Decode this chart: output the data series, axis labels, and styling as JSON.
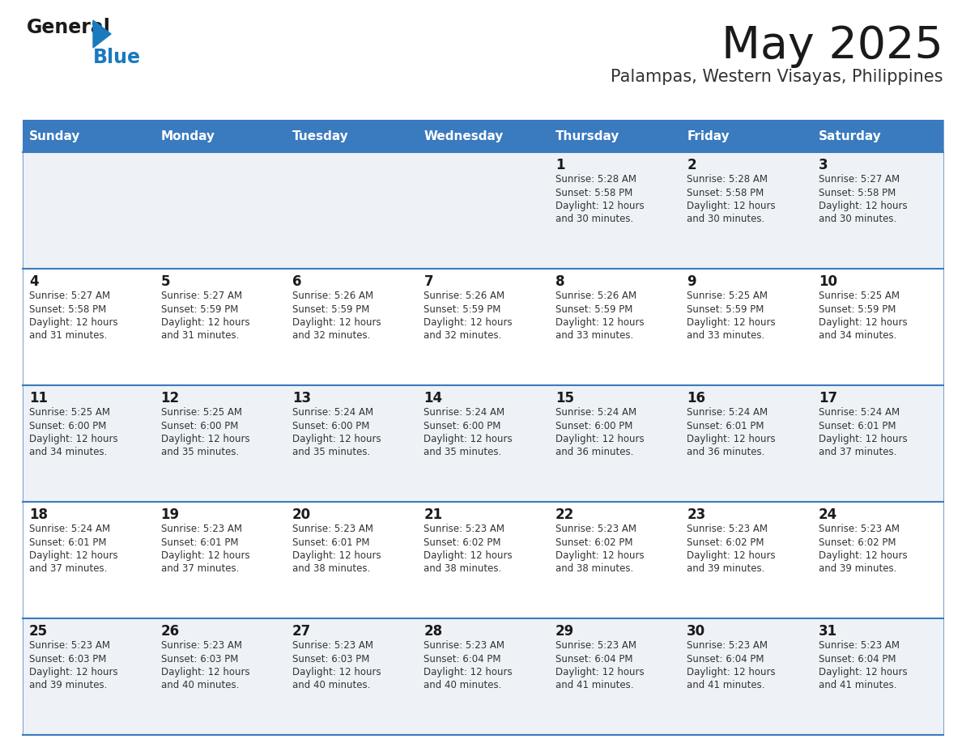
{
  "title": "May 2025",
  "subtitle": "Palampas, Western Visayas, Philippines",
  "days_of_week": [
    "Sunday",
    "Monday",
    "Tuesday",
    "Wednesday",
    "Thursday",
    "Friday",
    "Saturday"
  ],
  "header_bg": "#3a7abf",
  "header_text": "#ffffff",
  "row_bg_odd": "#eef2f7",
  "row_bg_even": "#ffffff",
  "border_color": "#3a7abf",
  "title_color": "#1a1a1a",
  "subtitle_color": "#333333",
  "day_num_color": "#1a1a1a",
  "cell_text_color": "#333333",
  "logo_black": "#1a1a1a",
  "logo_blue": "#1a7abf",
  "calendar": [
    [
      {
        "day": "",
        "sunrise": "",
        "sunset": "",
        "daylight": ""
      },
      {
        "day": "",
        "sunrise": "",
        "sunset": "",
        "daylight": ""
      },
      {
        "day": "",
        "sunrise": "",
        "sunset": "",
        "daylight": ""
      },
      {
        "day": "",
        "sunrise": "",
        "sunset": "",
        "daylight": ""
      },
      {
        "day": "1",
        "sunrise": "5:28 AM",
        "sunset": "5:58 PM",
        "daylight": "12 hours and 30 minutes."
      },
      {
        "day": "2",
        "sunrise": "5:28 AM",
        "sunset": "5:58 PM",
        "daylight": "12 hours and 30 minutes."
      },
      {
        "day": "3",
        "sunrise": "5:27 AM",
        "sunset": "5:58 PM",
        "daylight": "12 hours and 30 minutes."
      }
    ],
    [
      {
        "day": "4",
        "sunrise": "5:27 AM",
        "sunset": "5:58 PM",
        "daylight": "12 hours and 31 minutes."
      },
      {
        "day": "5",
        "sunrise": "5:27 AM",
        "sunset": "5:59 PM",
        "daylight": "12 hours and 31 minutes."
      },
      {
        "day": "6",
        "sunrise": "5:26 AM",
        "sunset": "5:59 PM",
        "daylight": "12 hours and 32 minutes."
      },
      {
        "day": "7",
        "sunrise": "5:26 AM",
        "sunset": "5:59 PM",
        "daylight": "12 hours and 32 minutes."
      },
      {
        "day": "8",
        "sunrise": "5:26 AM",
        "sunset": "5:59 PM",
        "daylight": "12 hours and 33 minutes."
      },
      {
        "day": "9",
        "sunrise": "5:25 AM",
        "sunset": "5:59 PM",
        "daylight": "12 hours and 33 minutes."
      },
      {
        "day": "10",
        "sunrise": "5:25 AM",
        "sunset": "5:59 PM",
        "daylight": "12 hours and 34 minutes."
      }
    ],
    [
      {
        "day": "11",
        "sunrise": "5:25 AM",
        "sunset": "6:00 PM",
        "daylight": "12 hours and 34 minutes."
      },
      {
        "day": "12",
        "sunrise": "5:25 AM",
        "sunset": "6:00 PM",
        "daylight": "12 hours and 35 minutes."
      },
      {
        "day": "13",
        "sunrise": "5:24 AM",
        "sunset": "6:00 PM",
        "daylight": "12 hours and 35 minutes."
      },
      {
        "day": "14",
        "sunrise": "5:24 AM",
        "sunset": "6:00 PM",
        "daylight": "12 hours and 35 minutes."
      },
      {
        "day": "15",
        "sunrise": "5:24 AM",
        "sunset": "6:00 PM",
        "daylight": "12 hours and 36 minutes."
      },
      {
        "day": "16",
        "sunrise": "5:24 AM",
        "sunset": "6:01 PM",
        "daylight": "12 hours and 36 minutes."
      },
      {
        "day": "17",
        "sunrise": "5:24 AM",
        "sunset": "6:01 PM",
        "daylight": "12 hours and 37 minutes."
      }
    ],
    [
      {
        "day": "18",
        "sunrise": "5:24 AM",
        "sunset": "6:01 PM",
        "daylight": "12 hours and 37 minutes."
      },
      {
        "day": "19",
        "sunrise": "5:23 AM",
        "sunset": "6:01 PM",
        "daylight": "12 hours and 37 minutes."
      },
      {
        "day": "20",
        "sunrise": "5:23 AM",
        "sunset": "6:01 PM",
        "daylight": "12 hours and 38 minutes."
      },
      {
        "day": "21",
        "sunrise": "5:23 AM",
        "sunset": "6:02 PM",
        "daylight": "12 hours and 38 minutes."
      },
      {
        "day": "22",
        "sunrise": "5:23 AM",
        "sunset": "6:02 PM",
        "daylight": "12 hours and 38 minutes."
      },
      {
        "day": "23",
        "sunrise": "5:23 AM",
        "sunset": "6:02 PM",
        "daylight": "12 hours and 39 minutes."
      },
      {
        "day": "24",
        "sunrise": "5:23 AM",
        "sunset": "6:02 PM",
        "daylight": "12 hours and 39 minutes."
      }
    ],
    [
      {
        "day": "25",
        "sunrise": "5:23 AM",
        "sunset": "6:03 PM",
        "daylight": "12 hours and 39 minutes."
      },
      {
        "day": "26",
        "sunrise": "5:23 AM",
        "sunset": "6:03 PM",
        "daylight": "12 hours and 40 minutes."
      },
      {
        "day": "27",
        "sunrise": "5:23 AM",
        "sunset": "6:03 PM",
        "daylight": "12 hours and 40 minutes."
      },
      {
        "day": "28",
        "sunrise": "5:23 AM",
        "sunset": "6:04 PM",
        "daylight": "12 hours and 40 minutes."
      },
      {
        "day": "29",
        "sunrise": "5:23 AM",
        "sunset": "6:04 PM",
        "daylight": "12 hours and 41 minutes."
      },
      {
        "day": "30",
        "sunrise": "5:23 AM",
        "sunset": "6:04 PM",
        "daylight": "12 hours and 41 minutes."
      },
      {
        "day": "31",
        "sunrise": "5:23 AM",
        "sunset": "6:04 PM",
        "daylight": "12 hours and 41 minutes."
      }
    ]
  ]
}
